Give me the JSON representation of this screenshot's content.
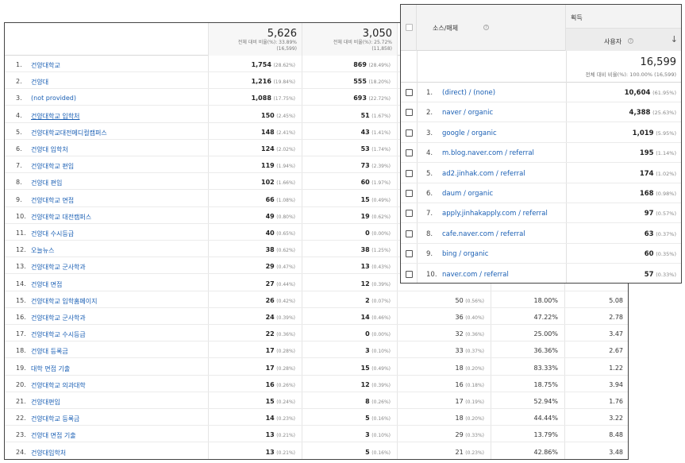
{
  "back_table": {
    "header": {
      "col1_value": "5,626",
      "col1_sub1": "전체 대비 비율(%): 33.89%",
      "col1_sub2": "(16,599)",
      "col2_value": "3,050",
      "col2_sub1": "전체 대비 비율(%): 25.72%",
      "col2_sub2": "(11,858)"
    },
    "rows": [
      {
        "num": "1.",
        "kw": "건양대학교",
        "v1": "1,754",
        "p1": "(28.62%)",
        "v2": "869",
        "p2": "(28.49%)",
        "v3": "",
        "p3": "",
        "v4": "",
        "v5": ""
      },
      {
        "num": "2.",
        "kw": "건양대",
        "v1": "1,216",
        "p1": "(19.84%)",
        "v2": "555",
        "p2": "(18.20%)",
        "v3": "",
        "p3": "",
        "v4": "",
        "v5": ""
      },
      {
        "num": "3.",
        "kw": "(not provided)",
        "v1": "1,088",
        "p1": "(17.75%)",
        "v2": "693",
        "p2": "(22.72%)",
        "v3": "",
        "p3": "",
        "v4": "",
        "v5": ""
      },
      {
        "num": "4.",
        "kw": "건양대학교 입학처",
        "v1": "150",
        "p1": "(2.45%)",
        "v2": "51",
        "p2": "(1.67%)",
        "v3": "",
        "p3": "",
        "v4": "",
        "v5": "",
        "ul": true
      },
      {
        "num": "5.",
        "kw": "건양대학교대전메디컬캠퍼스",
        "v1": "148",
        "p1": "(2.41%)",
        "v2": "43",
        "p2": "(1.41%)",
        "v3": "",
        "p3": "",
        "v4": "",
        "v5": ""
      },
      {
        "num": "6.",
        "kw": "건양대 입학처",
        "v1": "124",
        "p1": "(2.02%)",
        "v2": "53",
        "p2": "(1.74%)",
        "v3": "",
        "p3": "",
        "v4": "",
        "v5": ""
      },
      {
        "num": "7.",
        "kw": "건양대학교 편입",
        "v1": "119",
        "p1": "(1.94%)",
        "v2": "73",
        "p2": "(2.39%)",
        "v3": "",
        "p3": "",
        "v4": "",
        "v5": ""
      },
      {
        "num": "8.",
        "kw": "건양대 편입",
        "v1": "102",
        "p1": "(1.66%)",
        "v2": "60",
        "p2": "(1.97%)",
        "v3": "",
        "p3": "",
        "v4": "",
        "v5": ""
      },
      {
        "num": "9.",
        "kw": "건양대학교 면접",
        "v1": "66",
        "p1": "(1.08%)",
        "v2": "15",
        "p2": "(0.49%)",
        "v3": "",
        "p3": "",
        "v4": "",
        "v5": ""
      },
      {
        "num": "10.",
        "kw": "건양대학교 대전캠퍼스",
        "v1": "49",
        "p1": "(0.80%)",
        "v2": "19",
        "p2": "(0.62%)",
        "v3": "",
        "p3": "",
        "v4": "",
        "v5": ""
      },
      {
        "num": "11.",
        "kw": "건양대 수시등급",
        "v1": "40",
        "p1": "(0.65%)",
        "v2": "0",
        "p2": "(0.00%)",
        "v3": "",
        "p3": "",
        "v4": "",
        "v5": ""
      },
      {
        "num": "12.",
        "kw": "오늘뉴스",
        "v1": "38",
        "p1": "(0.62%)",
        "v2": "38",
        "p2": "(1.25%)",
        "v3": "",
        "p3": "",
        "v4": "",
        "v5": ""
      },
      {
        "num": "13.",
        "kw": "건양대학교 군사학과",
        "v1": "29",
        "p1": "(0.47%)",
        "v2": "13",
        "p2": "(0.43%)",
        "v3": "",
        "p3": "",
        "v4": "",
        "v5": ""
      },
      {
        "num": "14.",
        "kw": "건양대 면접",
        "v1": "27",
        "p1": "(0.44%)",
        "v2": "12",
        "p2": "(0.39%)",
        "v3": "",
        "p3": "",
        "v4": "",
        "v5": ""
      },
      {
        "num": "15.",
        "kw": "건양대학교 입학홈페이지",
        "v1": "26",
        "p1": "(0.42%)",
        "v2": "2",
        "p2": "(0.07%)",
        "v3": "50",
        "p3": "(0.56%)",
        "v4": "18.00%",
        "v5": "5.08"
      },
      {
        "num": "16.",
        "kw": "건양대학교 군사학과",
        "v1": "24",
        "p1": "(0.39%)",
        "v2": "14",
        "p2": "(0.46%)",
        "v3": "36",
        "p3": "(0.40%)",
        "v4": "47.22%",
        "v5": "2.78"
      },
      {
        "num": "17.",
        "kw": "건양대학교 수시등급",
        "v1": "22",
        "p1": "(0.36%)",
        "v2": "0",
        "p2": "(0.00%)",
        "v3": "32",
        "p3": "(0.36%)",
        "v4": "25.00%",
        "v5": "3.47"
      },
      {
        "num": "18.",
        "kw": "건양대 등록금",
        "v1": "17",
        "p1": "(0.28%)",
        "v2": "3",
        "p2": "(0.10%)",
        "v3": "33",
        "p3": "(0.37%)",
        "v4": "36.36%",
        "v5": "2.67"
      },
      {
        "num": "19.",
        "kw": "대학 면접 기출",
        "v1": "17",
        "p1": "(0.28%)",
        "v2": "15",
        "p2": "(0.49%)",
        "v3": "18",
        "p3": "(0.20%)",
        "v4": "83.33%",
        "v5": "1.22"
      },
      {
        "num": "20.",
        "kw": "건양대학교 의과대학",
        "v1": "16",
        "p1": "(0.26%)",
        "v2": "12",
        "p2": "(0.39%)",
        "v3": "16",
        "p3": "(0.18%)",
        "v4": "18.75%",
        "v5": "3.94"
      },
      {
        "num": "21.",
        "kw": "건양대편입",
        "v1": "15",
        "p1": "(0.24%)",
        "v2": "8",
        "p2": "(0.26%)",
        "v3": "17",
        "p3": "(0.19%)",
        "v4": "52.94%",
        "v5": "1.76"
      },
      {
        "num": "22.",
        "kw": "건양대학교 등록금",
        "v1": "14",
        "p1": "(0.23%)",
        "v2": "5",
        "p2": "(0.16%)",
        "v3": "18",
        "p3": "(0.20%)",
        "v4": "44.44%",
        "v5": "3.22"
      },
      {
        "num": "23.",
        "kw": "건양대 면접 기출",
        "v1": "13",
        "p1": "(0.21%)",
        "v2": "3",
        "p2": "(0.10%)",
        "v3": "29",
        "p3": "(0.33%)",
        "v4": "13.79%",
        "v5": "8.48"
      },
      {
        "num": "24.",
        "kw": "건양대입학처",
        "v1": "13",
        "p1": "(0.21%)",
        "v2": "5",
        "p2": "(0.16%)",
        "v3": "21",
        "p3": "(0.23%)",
        "v4": "42.86%",
        "v5": "3.48"
      }
    ]
  },
  "front_table": {
    "col_source": "소스/매체",
    "group_label": "획득",
    "col_users": "사용자",
    "sort_icon": "arrow-down-icon",
    "total_value": "16,599",
    "total_sub": "전체 대비 비율(%): 100.00% (16,599)",
    "rows": [
      {
        "num": "1.",
        "src": "(direct) / (none)",
        "val": "10,604",
        "pct": "(61.95%)"
      },
      {
        "num": "2.",
        "src": "naver / organic",
        "val": "4,388",
        "pct": "(25.63%)"
      },
      {
        "num": "3.",
        "src": "google / organic",
        "val": "1,019",
        "pct": "(5.95%)"
      },
      {
        "num": "4.",
        "src": "m.blog.naver.com / referral",
        "val": "195",
        "pct": "(1.14%)"
      },
      {
        "num": "5.",
        "src": "ad2.jinhak.com / referral",
        "val": "174",
        "pct": "(1.02%)"
      },
      {
        "num": "6.",
        "src": "daum / organic",
        "val": "168",
        "pct": "(0.98%)"
      },
      {
        "num": "7.",
        "src": "apply.jinhakapply.com / referral",
        "val": "97",
        "pct": "(0.57%)"
      },
      {
        "num": "8.",
        "src": "cafe.naver.com / referral",
        "val": "63",
        "pct": "(0.37%)"
      },
      {
        "num": "9.",
        "src": "bing / organic",
        "val": "60",
        "pct": "(0.35%)"
      },
      {
        "num": "10.",
        "src": "naver.com / referral",
        "val": "57",
        "pct": "(0.33%)"
      }
    ]
  }
}
